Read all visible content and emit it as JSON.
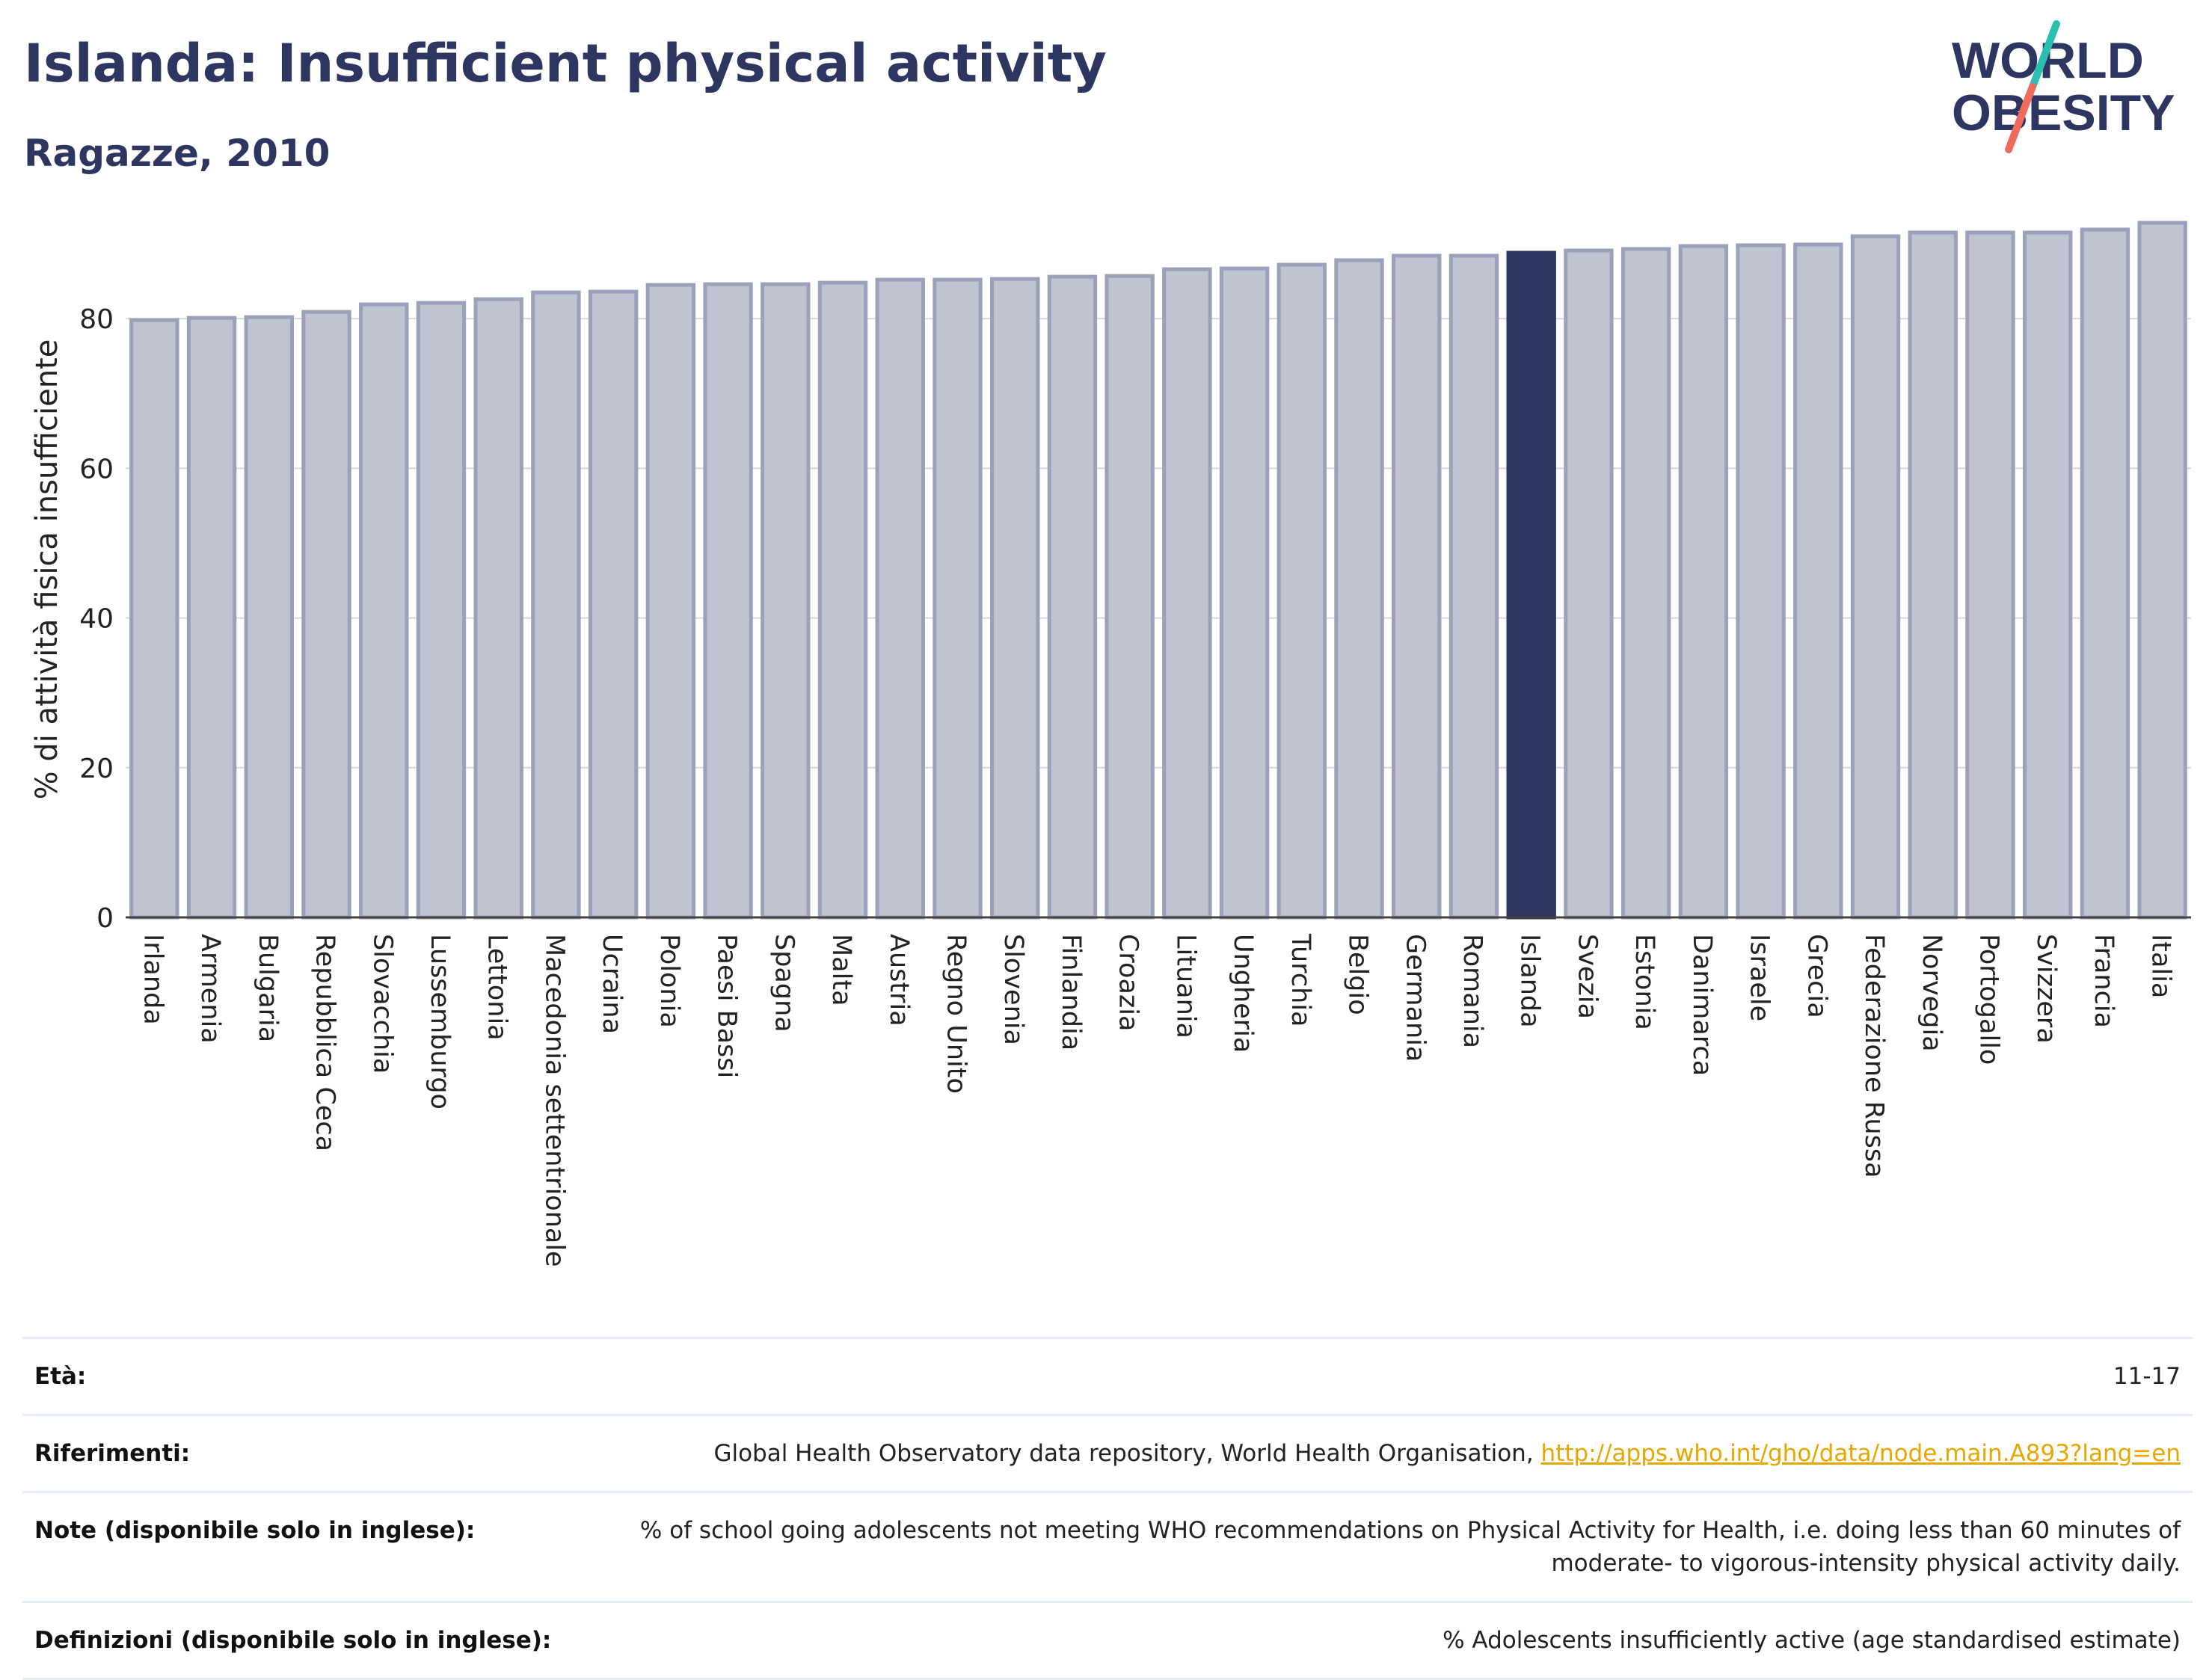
{
  "header": {
    "title": "Islanda: Insufficient physical activity",
    "subtitle": "Ragazze, 2010"
  },
  "logo": {
    "line1": "WORLD",
    "line2": "OBESITY",
    "colors": {
      "text": "#2d3561",
      "slash_top": "#2bbfb0",
      "slash_bottom": "#f06b5d"
    }
  },
  "colors": {
    "bar_fill": "#c0c3d0",
    "bar_stroke": "#9ba0bb",
    "highlight": "#2d3561",
    "grid": "#d9d9d9",
    "axis_text": "#222222"
  },
  "chart_data": {
    "type": "bar",
    "title": "Islanda: Insufficient physical activity",
    "subtitle": "Ragazze, 2010",
    "xlabel": "",
    "ylabel": "% di attività fisica insufficiente",
    "ylim": [
      0,
      93
    ],
    "yticks": [
      0,
      20,
      40,
      60,
      80
    ],
    "grid": true,
    "highlight": "Islanda",
    "categories": [
      "Irlanda",
      "Armenia",
      "Bulgaria",
      "Repubblica Ceca",
      "Slovacchia",
      "Lussemburgo",
      "Lettonia",
      "Macedonia settentrionale",
      "Ucraina",
      "Polonia",
      "Paesi Bassi",
      "Spagna",
      "Malta",
      "Austria",
      "Regno Unito",
      "Slovenia",
      "Finlandia",
      "Croazia",
      "Lituania",
      "Ungheria",
      "Turchia",
      "Belgio",
      "Germania",
      "Romania",
      "Islanda",
      "Svezia",
      "Estonia",
      "Danimarca",
      "Israele",
      "Grecia",
      "Federazione Russa",
      "Norvegia",
      "Portogallo",
      "Svizzera",
      "Francia",
      "Italia"
    ],
    "values": [
      79.8,
      80.1,
      80.2,
      80.9,
      81.9,
      82.1,
      82.6,
      83.5,
      83.6,
      84.5,
      84.6,
      84.6,
      84.8,
      85.2,
      85.2,
      85.3,
      85.6,
      85.7,
      86.6,
      86.7,
      87.2,
      87.8,
      88.4,
      88.4,
      88.8,
      89.1,
      89.3,
      89.7,
      89.8,
      89.9,
      91.0,
      91.5,
      91.5,
      91.5,
      91.9,
      92.8
    ]
  },
  "footer": {
    "rows": [
      {
        "label": "Età:",
        "value": "11-17"
      },
      {
        "label": "Riferimenti:",
        "value": "Global Health Observatory data repository, World Health Organisation, ",
        "link": "http://apps.who.int/gho/data/node.main.A893?lang=en"
      },
      {
        "label": "Note (disponibile solo in inglese):",
        "value": "% of school going adolescents not meeting WHO recommendations on Physical Activity for Health, i.e. doing less than 60 minutes of moderate- to vigorous-intensity physical activity daily."
      },
      {
        "label": "Definizioni (disponibile solo in inglese):",
        "value": "% Adolescents insufficiently active (age standardised estimate)"
      }
    ]
  }
}
